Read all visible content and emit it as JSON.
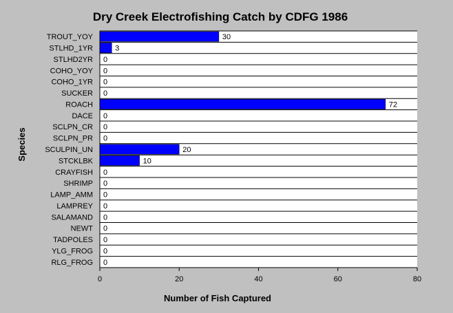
{
  "chart_data": {
    "type": "bar",
    "orientation": "horizontal",
    "title": "Dry Creek Electrofishing Catch by CDFG 1986",
    "xlabel": "Number of Fish Captured",
    "ylabel": "Species",
    "xlim": [
      0,
      80
    ],
    "xticks": [
      0,
      20,
      40,
      60,
      80
    ],
    "grid": "horizontal lines between categories",
    "categories": [
      "TROUT_YOY",
      "STLHD_1YR",
      "STLHD2YR",
      "COHO_YOY",
      "COHO_1YR",
      "SUCKER",
      "ROACH",
      "DACE",
      "SCLPN_CR",
      "SCLPN_PR",
      "SCULPIN_UN",
      "STCKLBK",
      "CRAYFISH",
      "SHRIMP",
      "LAMP_AMM",
      "LAMPREY",
      "SALAMAND",
      "NEWT",
      "TADPOLES",
      "YLG_FROG",
      "RLG_FROG"
    ],
    "values": [
      30,
      3,
      0,
      0,
      0,
      0,
      72,
      0,
      0,
      0,
      20,
      10,
      0,
      0,
      0,
      0,
      0,
      0,
      0,
      0,
      0
    ],
    "bar_color": "#0000ff",
    "background": "#c0c0c0",
    "plot_background": "#ffffff"
  }
}
